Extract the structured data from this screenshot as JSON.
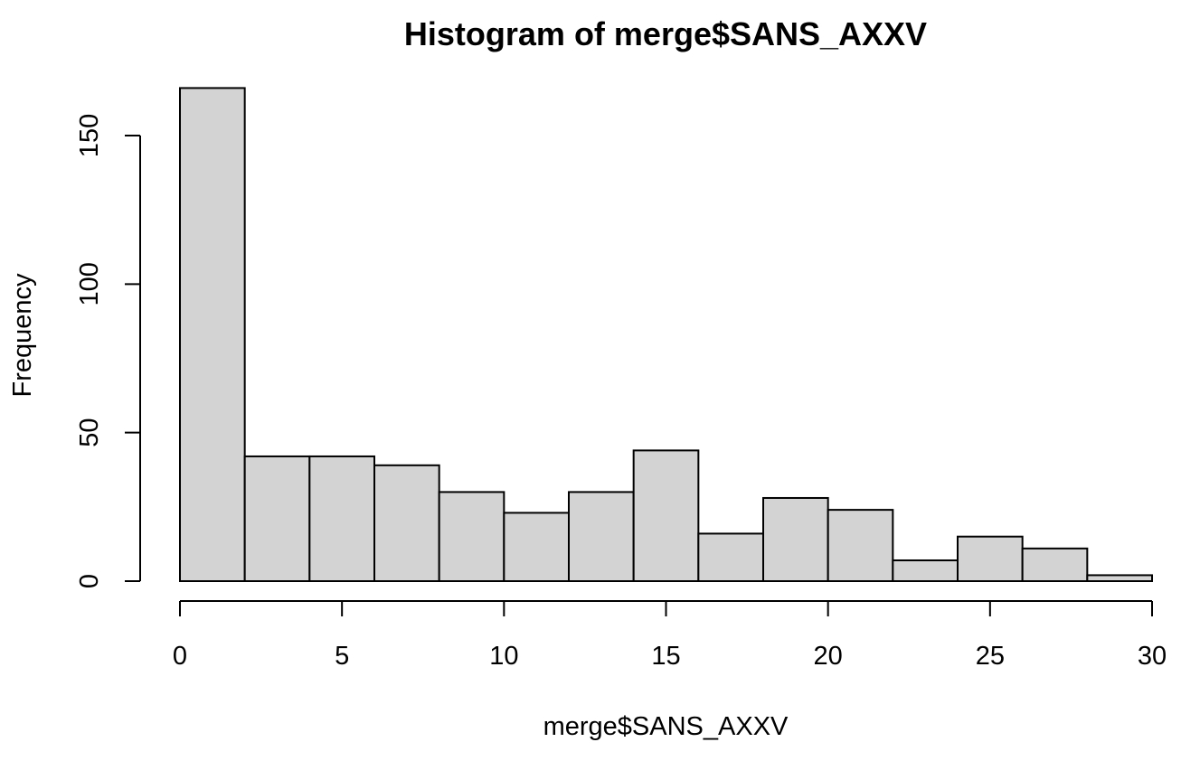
{
  "chart_data": {
    "type": "bar",
    "title": "Histogram of merge$SANS_AXXV",
    "xlabel": "merge$SANS_AXXV",
    "ylabel": "Frequency",
    "bins": [
      {
        "x0": 0,
        "x1": 2,
        "count": 166
      },
      {
        "x0": 2,
        "x1": 4,
        "count": 42
      },
      {
        "x0": 4,
        "x1": 6,
        "count": 42
      },
      {
        "x0": 6,
        "x1": 8,
        "count": 39
      },
      {
        "x0": 8,
        "x1": 10,
        "count": 30
      },
      {
        "x0": 10,
        "x1": 12,
        "count": 23
      },
      {
        "x0": 12,
        "x1": 14,
        "count": 30
      },
      {
        "x0": 14,
        "x1": 16,
        "count": 44
      },
      {
        "x0": 16,
        "x1": 18,
        "count": 16
      },
      {
        "x0": 18,
        "x1": 20,
        "count": 28
      },
      {
        "x0": 20,
        "x1": 22,
        "count": 24
      },
      {
        "x0": 22,
        "x1": 24,
        "count": 7
      },
      {
        "x0": 24,
        "x1": 26,
        "count": 15
      },
      {
        "x0": 26,
        "x1": 28,
        "count": 11
      },
      {
        "x0": 28,
        "x1": 30,
        "count": 2
      }
    ],
    "xlim": [
      0,
      30
    ],
    "ylim": [
      0,
      150
    ],
    "xticks": [
      "0",
      "5",
      "10",
      "15",
      "20",
      "25",
      "30"
    ],
    "yticks": [
      "0",
      "50",
      "100",
      "150"
    ],
    "grid": false,
    "bar_color": "#d3d3d3",
    "edge_color": "#000000"
  }
}
